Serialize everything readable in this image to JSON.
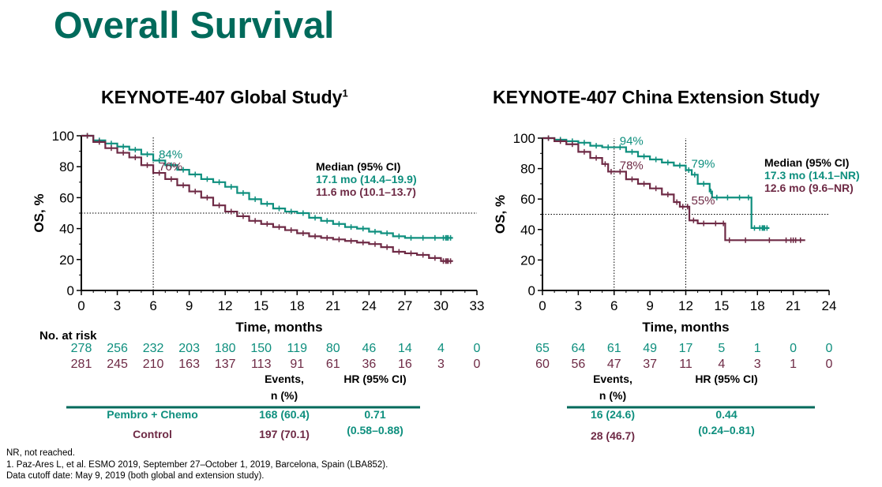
{
  "slide_title": "Overall Survival",
  "colors": {
    "pembro": "#0e8f7e",
    "control": "#6e2a45",
    "title": "#006a5b",
    "rule": "#006a5b"
  },
  "chart_data": [
    {
      "type": "line",
      "title": "KEYNOTE-407 Global Study",
      "title_superscript": "1",
      "xlabel": "Time, months",
      "ylabel": "OS, %",
      "xlim": [
        0,
        33
      ],
      "ylim": [
        0,
        100
      ],
      "xticks": [
        0,
        3,
        6,
        9,
        12,
        15,
        18,
        21,
        24,
        27,
        30,
        33
      ],
      "yticks": [
        0,
        20,
        40,
        60,
        80,
        100
      ],
      "reference_lines": {
        "vertical_x": 6,
        "horizontal_y": 50
      },
      "legend_title": "Median (95% CI)",
      "series": [
        {
          "name": "17.1 mo (14.4–19.9)",
          "color": "#0e8f7e",
          "tail_censored": true,
          "points": [
            [
              0,
              100
            ],
            [
              1,
              97
            ],
            [
              2,
              95
            ],
            [
              3,
              93
            ],
            [
              4,
              91
            ],
            [
              5,
              88
            ],
            [
              6,
              84
            ],
            [
              7,
              81
            ],
            [
              8,
              78
            ],
            [
              9,
              75
            ],
            [
              10,
              72
            ],
            [
              11,
              70
            ],
            [
              12,
              67
            ],
            [
              13,
              63
            ],
            [
              14,
              59
            ],
            [
              15,
              56
            ],
            [
              16,
              53
            ],
            [
              17,
              51
            ],
            [
              18,
              50
            ],
            [
              19,
              47
            ],
            [
              20,
              45
            ],
            [
              21,
              43
            ],
            [
              22,
              41
            ],
            [
              23,
              40
            ],
            [
              24,
              38
            ],
            [
              25,
              37
            ],
            [
              26,
              35
            ],
            [
              27,
              34
            ],
            [
              28,
              34
            ],
            [
              29,
              34
            ],
            [
              30,
              34
            ],
            [
              31,
              34
            ]
          ]
        },
        {
          "name": "11.6 mo (10.1–13.7)",
          "color": "#6e2a45",
          "tail_censored": true,
          "points": [
            [
              0,
              100
            ],
            [
              1,
              96
            ],
            [
              2,
              92
            ],
            [
              3,
              89
            ],
            [
              4,
              86
            ],
            [
              5,
              81
            ],
            [
              6,
              76
            ],
            [
              7,
              72
            ],
            [
              8,
              68
            ],
            [
              9,
              64
            ],
            [
              10,
              60
            ],
            [
              11,
              55
            ],
            [
              12,
              51
            ],
            [
              13,
              48
            ],
            [
              14,
              45
            ],
            [
              15,
              43
            ],
            [
              16,
              41
            ],
            [
              17,
              39
            ],
            [
              18,
              37
            ],
            [
              19,
              35
            ],
            [
              20,
              34
            ],
            [
              21,
              33
            ],
            [
              22,
              32
            ],
            [
              23,
              31
            ],
            [
              24,
              30
            ],
            [
              25,
              28
            ],
            [
              26,
              25
            ],
            [
              27,
              24
            ],
            [
              28,
              23
            ],
            [
              29,
              21
            ],
            [
              30,
              19
            ],
            [
              31,
              19
            ]
          ]
        }
      ],
      "annotations": [
        {
          "text": "84%",
          "x": 6,
          "y": 84,
          "color": "#0e8f7e"
        },
        {
          "text": "76%",
          "x": 6,
          "y": 76,
          "color": "#6e2a45"
        }
      ],
      "risk_table": {
        "label": "No. at risk",
        "pembro": [
          "278",
          "256",
          "232",
          "203",
          "180",
          "150",
          "119",
          "80",
          "46",
          "14",
          "4",
          "0"
        ],
        "control": [
          "281",
          "245",
          "210",
          "163",
          "137",
          "113",
          "91",
          "61",
          "36",
          "16",
          "3",
          "0"
        ]
      },
      "summary_table": {
        "events_header": [
          "Events,",
          "n (%)"
        ],
        "hr_header": "HR (95% CI)",
        "rows": [
          {
            "group": "Pembro + Chemo",
            "events": "168 (60.4)"
          },
          {
            "group": "Control",
            "events": "197 (70.1)"
          }
        ],
        "hr_value": "0.71",
        "hr_ci": "(0.58–0.88)"
      }
    },
    {
      "type": "line",
      "title": "KEYNOTE-407 China Extension Study",
      "xlabel": "Time, months",
      "ylabel": "OS, %",
      "xlim": [
        0,
        24
      ],
      "ylim": [
        0,
        100
      ],
      "xticks": [
        0,
        3,
        6,
        9,
        12,
        15,
        18,
        21,
        24
      ],
      "yticks": [
        0,
        20,
        40,
        60,
        80,
        100
      ],
      "reference_lines": {
        "vertical_x": [
          6,
          12
        ],
        "horizontal_y": 50
      },
      "legend_title": "Median (95% CI)",
      "series": [
        {
          "name": "17.3 mo (14.1–NR)",
          "color": "#0e8f7e",
          "tail_censored": true,
          "points": [
            [
              0,
              100
            ],
            [
              1,
              99
            ],
            [
              2,
              98
            ],
            [
              3,
              97
            ],
            [
              4,
              95
            ],
            [
              5,
              94
            ],
            [
              6,
              94
            ],
            [
              7,
              91
            ],
            [
              8,
              88
            ],
            [
              9,
              86
            ],
            [
              10,
              84
            ],
            [
              11,
              82
            ],
            [
              12,
              79
            ],
            [
              12.5,
              76
            ],
            [
              13,
              70
            ],
            [
              14,
              65
            ],
            [
              14.2,
              61
            ],
            [
              15,
              61
            ],
            [
              16,
              61
            ],
            [
              17,
              61
            ],
            [
              17.5,
              41
            ],
            [
              18,
              41
            ],
            [
              19,
              41
            ]
          ]
        },
        {
          "name": "12.6 mo (9.6–NR)",
          "color": "#6e2a45",
          "tail_censored": true,
          "points": [
            [
              0,
              100
            ],
            [
              1,
              98
            ],
            [
              2,
              96
            ],
            [
              3,
              91
            ],
            [
              4,
              87
            ],
            [
              5,
              83
            ],
            [
              5.5,
              78
            ],
            [
              6,
              78
            ],
            [
              7,
              73
            ],
            [
              8,
              70
            ],
            [
              9,
              67
            ],
            [
              10,
              63
            ],
            [
              11,
              58
            ],
            [
              11.5,
              55
            ],
            [
              12,
              55
            ],
            [
              12.3,
              46
            ],
            [
              13,
              44
            ],
            [
              14,
              44
            ],
            [
              15,
              44
            ],
            [
              15.3,
              33
            ],
            [
              16,
              33
            ],
            [
              18,
              33
            ],
            [
              20,
              33
            ],
            [
              22,
              33
            ]
          ]
        }
      ],
      "annotations": [
        {
          "text": "94%",
          "x": 6,
          "y": 94,
          "color": "#0e8f7e"
        },
        {
          "text": "78%",
          "x": 6,
          "y": 78,
          "color": "#6e2a45"
        },
        {
          "text": "79%",
          "x": 12,
          "y": 79,
          "color": "#0e8f7e"
        },
        {
          "text": "55%",
          "x": 12,
          "y": 55,
          "color": "#6e2a45"
        }
      ],
      "risk_table": {
        "pembro": [
          "65",
          "64",
          "61",
          "49",
          "17",
          "5",
          "1",
          "0",
          "0"
        ],
        "control": [
          "60",
          "56",
          "47",
          "37",
          "11",
          "4",
          "3",
          "1",
          "0"
        ]
      },
      "summary_table": {
        "events_header": [
          "Events,",
          "n (%)"
        ],
        "hr_header": "HR (95% CI)",
        "rows": [
          {
            "events": "16 (24.6)"
          },
          {
            "events": "28 (46.7)"
          }
        ],
        "hr_value": "0.44",
        "hr_ci": "(0.24–0.81)"
      }
    }
  ],
  "footer": {
    "line1": "NR, not reached.",
    "line2": "1. Paz-Ares L, et al. ESMO 2019, September 27–October 1, 2019, Barcelona, Spain (LBA852).",
    "line3": "Data cutoff date: May 9, 2019 (both global and extension study)."
  }
}
